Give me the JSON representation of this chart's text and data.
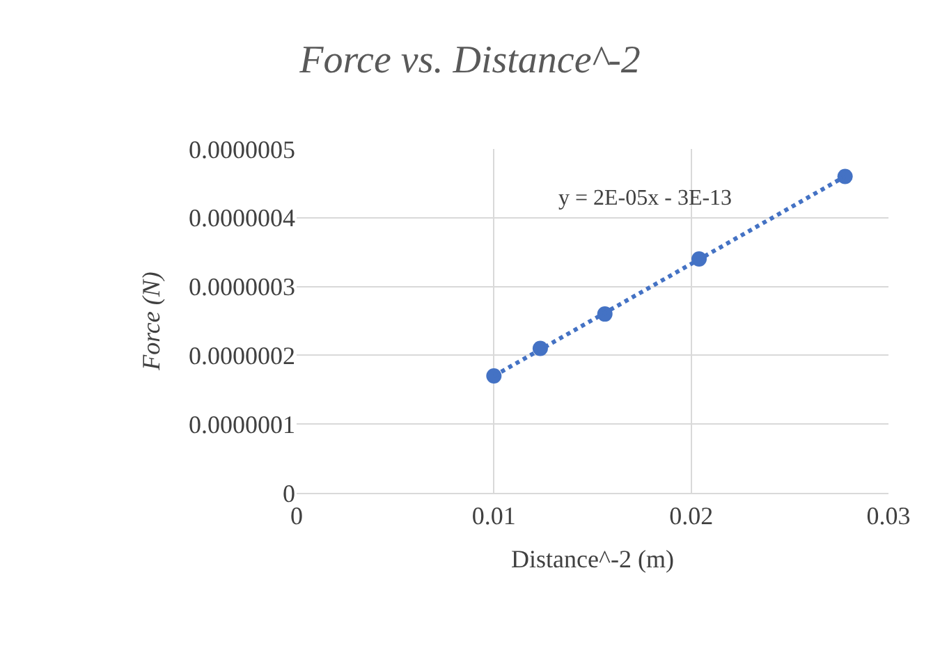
{
  "chart_data": {
    "type": "scatter",
    "title": "Force vs. Distance^-2",
    "xlabel": "Distance^-2 (m)",
    "ylabel": "Force (N)",
    "xlim": [
      0,
      0.03
    ],
    "xticks": [
      0,
      0.01,
      0.02,
      0.03
    ],
    "ylim": [
      0,
      5e-07
    ],
    "yticks": [
      {
        "value": 0,
        "label": "0"
      },
      {
        "value": 1e-07,
        "label": "0.0000001"
      },
      {
        "value": 2e-07,
        "label": "0.0000002"
      },
      {
        "value": 3e-07,
        "label": "0.0000003"
      },
      {
        "value": 4e-07,
        "label": "0.0000004"
      },
      {
        "value": 5e-07,
        "label": "0.0000005"
      }
    ],
    "grid": true,
    "marker": "circle",
    "series": [
      {
        "color": "#4472c4",
        "x": [
          0.01,
          0.01235,
          0.015625,
          0.0204,
          0.0278
        ],
        "values": [
          1.7e-07,
          2.1e-07,
          2.6e-07,
          3.4e-07,
          4.6e-07
        ]
      },
      {
        "type": "line",
        "color": "#4472c4",
        "line_style": "dotted",
        "marker": "none",
        "x": [
          0.01,
          0.0278
        ],
        "values": [
          1.7e-07,
          4.6e-07
        ]
      }
    ],
    "annotations": [
      "y = 2E-05x - 3E-13"
    ]
  }
}
